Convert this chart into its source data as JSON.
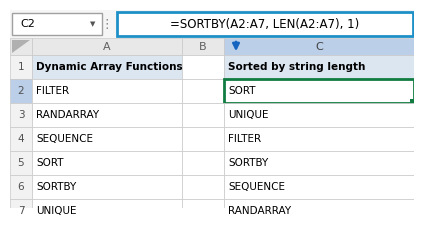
{
  "formula_bar_cell": "C2",
  "formula": "=SORTBY(A2:A7, LEN(A2:A7), 1)",
  "col_headers": [
    "A",
    "B",
    "C"
  ],
  "row_numbers": [
    1,
    2,
    3,
    4,
    5,
    6,
    7
  ],
  "row1_A": "Dynamic Array Functions",
  "row1_C": "Sorted by string length",
  "col_A_data": [
    "FILTER",
    "RANDARRAY",
    "SEQUENCE",
    "SORT",
    "SORTBY",
    "UNIQUE"
  ],
  "col_C_data": [
    "SORT",
    "UNIQUE",
    "FILTER",
    "SORTBY",
    "SEQUENCE",
    "RANDARRAY"
  ],
  "bg_color": "#ffffff",
  "header_bg": "#e8e8e8",
  "selected_col_header_bg": "#bbcfe8",
  "formula_bar_border": "#1e90c8",
  "cell_border_color": "#c8c8c8",
  "selected_cell_border": "#107C41",
  "row1_bg": "#dce6f1",
  "arrow_color": "#1565C0",
  "font_color": "#000000",
  "row_num_bg": "#f2f2f2",
  "selected_row_num_bg": "#bbcfe8",
  "formula_bar_bg": "#ffffff",
  "name_box_border": "#a0a0a0",
  "separator_color": "#808080"
}
